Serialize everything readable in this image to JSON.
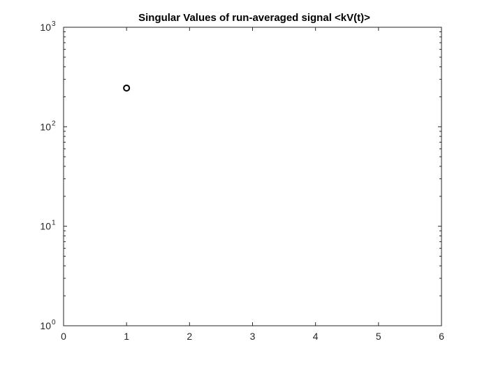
{
  "chart_data": {
    "type": "scatter",
    "title": "Singular Values of run-averaged signal <kV(t)>",
    "xlabel": "",
    "ylabel": "",
    "xlim": [
      0,
      6
    ],
    "ylim": [
      1,
      1000
    ],
    "yscale": "log",
    "x_ticks": [
      {
        "value": 0,
        "label": "0"
      },
      {
        "value": 1,
        "label": "1"
      },
      {
        "value": 2,
        "label": "2"
      },
      {
        "value": 3,
        "label": "3"
      },
      {
        "value": 4,
        "label": "4"
      },
      {
        "value": 5,
        "label": "5"
      },
      {
        "value": 6,
        "label": "6"
      }
    ],
    "y_ticks": [
      {
        "value": 1,
        "base": "10",
        "exp": "0"
      },
      {
        "value": 10,
        "base": "10",
        "exp": "1"
      },
      {
        "value": 100,
        "base": "10",
        "exp": "2"
      },
      {
        "value": 1000,
        "base": "10",
        "exp": "3"
      }
    ],
    "grid": false,
    "box": true,
    "marker": "open-circle",
    "series": [
      {
        "x": [
          1
        ],
        "values": [
          245
        ]
      }
    ]
  },
  "colors": {
    "axis": "#262626",
    "marker": "#000000",
    "background": "#ffffff"
  }
}
